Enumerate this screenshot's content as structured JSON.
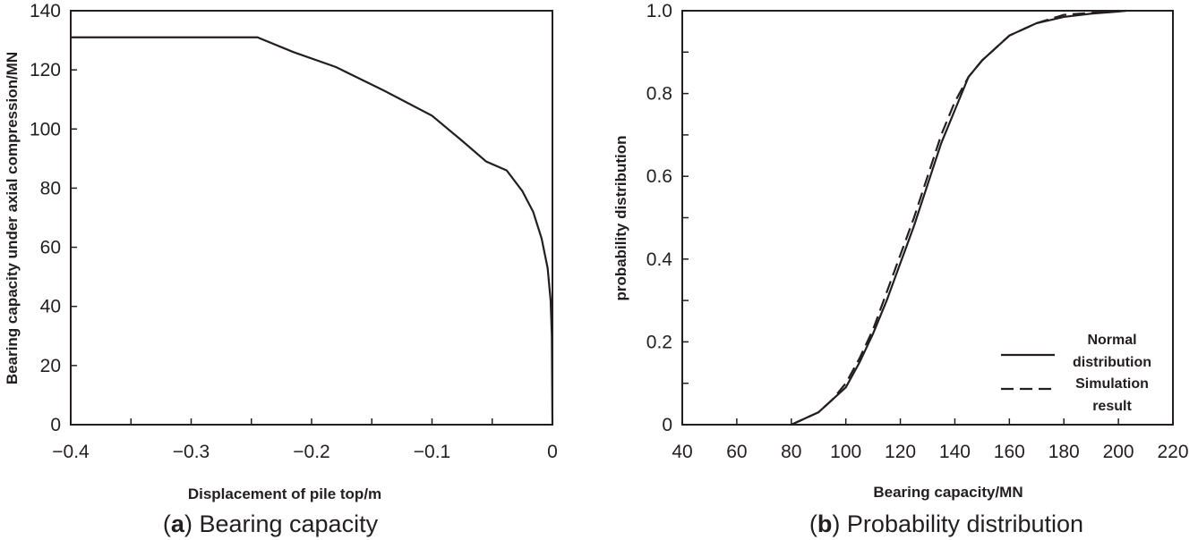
{
  "chart_data": [
    {
      "type": "line",
      "xlabel": "Displacement of pile top/m",
      "ylabel": "Bearing capacity under axial compression/MN",
      "xlim": [
        -0.4,
        0
      ],
      "ylim": [
        0,
        140
      ],
      "xticks": [
        -0.4,
        -0.3,
        -0.2,
        -0.1,
        0
      ],
      "xtick_labels": [
        "−0.4",
        "−0.3",
        "−0.2",
        "−0.1",
        "0"
      ],
      "yticks": [
        0,
        20,
        40,
        60,
        80,
        100,
        120,
        140
      ],
      "ytick_labels": [
        "0",
        "20",
        "40",
        "60",
        "80",
        "100",
        "120",
        "140"
      ],
      "grid": false,
      "caption_label": "a",
      "caption_text": " Bearing capacity",
      "series": [
        {
          "x": [
            -0.4,
            -0.245,
            -0.215,
            -0.18,
            -0.14,
            -0.1,
            -0.075,
            -0.055,
            -0.038,
            -0.025,
            -0.016,
            -0.009,
            -0.004,
            -0.0015,
            -0.0005,
            0
          ],
          "y": [
            131,
            131,
            126,
            121,
            113,
            104.5,
            96,
            89,
            86,
            79,
            72,
            63,
            53,
            42,
            30,
            0
          ]
        }
      ]
    },
    {
      "type": "line",
      "xlabel": "Bearing capacity/MN",
      "ylabel": "probability distribution",
      "xlim": [
        40,
        220
      ],
      "ylim": [
        0,
        1
      ],
      "xticks": [
        40,
        60,
        80,
        100,
        120,
        140,
        160,
        180,
        200,
        220
      ],
      "xtick_labels": [
        "40",
        "60",
        "80",
        "100",
        "120",
        "140",
        "160",
        "180",
        "200",
        "220"
      ],
      "yticks": [
        0,
        0.2,
        0.4,
        0.6,
        0.8,
        1.0
      ],
      "ytick_labels": [
        "0",
        "0.2",
        "0.4",
        "0.6",
        "0.8",
        "1.0"
      ],
      "grid": false,
      "legend_position": "bottom-right",
      "caption_label": "b",
      "caption_text": " Probability distribution",
      "series": [
        {
          "name": "Normal distribution",
          "style": "solid",
          "x": [
            80,
            90,
            100,
            105,
            110,
            115,
            120,
            125,
            130,
            135,
            140,
            145,
            150,
            155,
            160,
            170,
            180,
            190,
            200,
            203
          ],
          "y": [
            0,
            0.03,
            0.09,
            0.15,
            0.22,
            0.3,
            0.39,
            0.48,
            0.58,
            0.68,
            0.76,
            0.84,
            0.88,
            0.91,
            0.94,
            0.97,
            0.985,
            0.993,
            0.998,
            1.0
          ]
        },
        {
          "name": "Simulation result",
          "style": "dashed",
          "x": [
            80,
            85,
            90,
            95,
            100,
            105,
            110,
            115,
            120,
            125,
            130,
            135,
            140,
            145,
            150,
            155,
            160,
            170,
            180,
            190,
            200
          ],
          "y": [
            0,
            0.015,
            0.03,
            0.06,
            0.1,
            0.16,
            0.23,
            0.32,
            0.41,
            0.5,
            0.6,
            0.7,
            0.78,
            0.84,
            0.88,
            0.91,
            0.94,
            0.97,
            0.99,
            0.995,
            1.0
          ]
        }
      ],
      "legend": [
        {
          "line1": "Normal",
          "line2": "distribution"
        },
        {
          "line1": "Simulation",
          "line2": "result"
        }
      ]
    }
  ]
}
